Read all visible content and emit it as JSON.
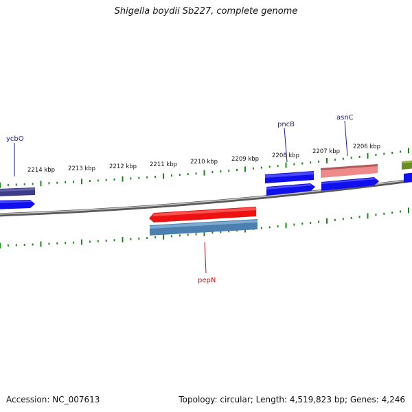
{
  "title": "Shigella boydii Sb227, complete genome",
  "footer": {
    "accession": "Accession: NC_007613",
    "summary": "Topology: circular; Length: 4,519,823 bp; Genes: 4,246"
  },
  "colors": {
    "backbone": "#8c8c8c",
    "ticks": "#1a8a1a",
    "gene_blue": "#1010ee",
    "gene_navy": "#3c3c88",
    "gene_red": "#ee1111",
    "gene_steel": "#4a7fb0",
    "gene_pink": "#ee8a8a",
    "gene_olive": "#6b8e23",
    "label_blue": "#1a1aaa",
    "label_red": "#cc1111"
  },
  "kbp_labels": [
    "2214 kbp",
    "2213 kbp",
    "2212 kbp",
    "2211 kbp",
    "2210 kbp",
    "2209 kbp",
    "2208 kbp",
    "2207 kbp",
    "2206 kbp"
  ],
  "genes": [
    {
      "name": "ycbO",
      "color": "#3c3c88",
      "labeled": true
    },
    {
      "name": "",
      "color": "#1010ee",
      "labeled": false
    },
    {
      "name": "pepN",
      "color": "#ee1111",
      "labeled": true
    },
    {
      "name": "",
      "color": "#4a7fb0",
      "labeled": false
    },
    {
      "name": "pncB",
      "color": "#1010ee",
      "labeled": true
    },
    {
      "name": "",
      "color": "#1010ee",
      "labeled": false
    },
    {
      "name": "asnC",
      "color": "#ee8a8a",
      "labeled": true
    },
    {
      "name": "",
      "color": "#1010ee",
      "labeled": false
    },
    {
      "name": "",
      "color": "#6b8e23",
      "labeled": false
    },
    {
      "name": "",
      "color": "#1010ee",
      "labeled": false
    }
  ]
}
